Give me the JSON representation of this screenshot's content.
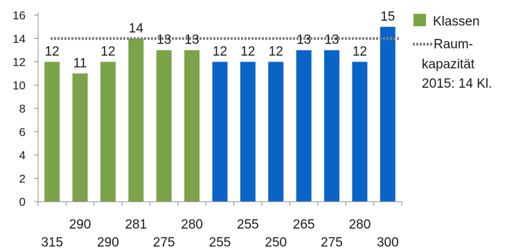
{
  "chart_data": {
    "type": "bar",
    "categories": [
      "315",
      "290",
      "290",
      "281",
      "275",
      "280",
      "255",
      "255",
      "250",
      "265",
      "275",
      "280",
      "300"
    ],
    "values": [
      12,
      11,
      12,
      14,
      13,
      13,
      12,
      12,
      12,
      13,
      13,
      12,
      15
    ],
    "data_labels": [
      "12",
      "11",
      "12",
      "14",
      "13",
      "13",
      "12",
      "12",
      "12",
      "13",
      "13",
      "12",
      "15"
    ],
    "bar_colors": [
      "#7aa447",
      "#7aa447",
      "#7aa447",
      "#7aa447",
      "#7aa447",
      "#7aa447",
      "#0a64c8",
      "#0a64c8",
      "#0a64c8",
      "#0a64c8",
      "#0a64c8",
      "#0a64c8",
      "#0a64c8"
    ],
    "reference_line": {
      "value": 14,
      "color": "#808080",
      "style": "dotted"
    },
    "ylim": [
      0,
      16
    ],
    "yticks": [
      "0",
      "2",
      "4",
      "6",
      "8",
      "10",
      "12",
      "14",
      "16"
    ],
    "grid": false,
    "legend_position": "right",
    "legend": {
      "bars_label": "Klassen",
      "line_label_lines": [
        "Raum-",
        "kapazität",
        "2015: 14 Kl."
      ]
    }
  }
}
